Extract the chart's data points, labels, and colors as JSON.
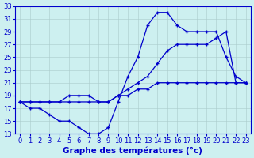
{
  "title": "Graphe des températures (°c)",
  "bg_color": "#cdf0f0",
  "line_color": "#0000cc",
  "xlim": [
    -0.5,
    23.5
  ],
  "ylim": [
    13,
    33
  ],
  "xticks": [
    0,
    1,
    2,
    3,
    4,
    5,
    6,
    7,
    8,
    9,
    10,
    11,
    12,
    13,
    14,
    15,
    16,
    17,
    18,
    19,
    20,
    21,
    22,
    23
  ],
  "yticks": [
    13,
    15,
    17,
    19,
    21,
    23,
    25,
    27,
    29,
    31,
    33
  ],
  "line1_x": [
    0,
    1,
    2,
    3,
    4,
    5,
    6,
    7,
    8,
    9,
    10,
    11,
    12,
    13,
    14,
    15,
    16,
    17,
    18,
    19,
    20,
    21,
    22,
    23
  ],
  "line1_y": [
    18,
    17,
    17,
    16,
    15,
    15,
    14,
    13,
    13,
    14,
    18,
    22,
    25,
    30,
    32,
    32,
    30,
    29,
    29,
    29,
    29,
    25,
    22,
    21
  ],
  "line2_x": [
    0,
    1,
    2,
    3,
    4,
    5,
    6,
    7,
    8,
    9,
    10,
    11,
    12,
    13,
    14,
    15,
    16,
    17,
    18,
    19,
    20,
    21,
    22,
    23
  ],
  "line2_y": [
    18,
    18,
    18,
    18,
    18,
    19,
    19,
    19,
    18,
    18,
    19,
    20,
    21,
    22,
    24,
    26,
    27,
    27,
    27,
    27,
    28,
    29,
    21,
    21
  ],
  "line3_x": [
    0,
    1,
    2,
    3,
    4,
    5,
    6,
    7,
    8,
    9,
    10,
    11,
    12,
    13,
    14,
    15,
    16,
    17,
    18,
    19,
    20,
    21,
    22,
    23
  ],
  "line3_y": [
    18,
    18,
    18,
    18,
    18,
    18,
    18,
    18,
    18,
    18,
    19,
    19,
    20,
    20,
    21,
    21,
    21,
    21,
    21,
    21,
    21,
    21,
    21,
    21
  ],
  "tick_fontsize": 6.0,
  "xlabel_fontsize": 7.5
}
